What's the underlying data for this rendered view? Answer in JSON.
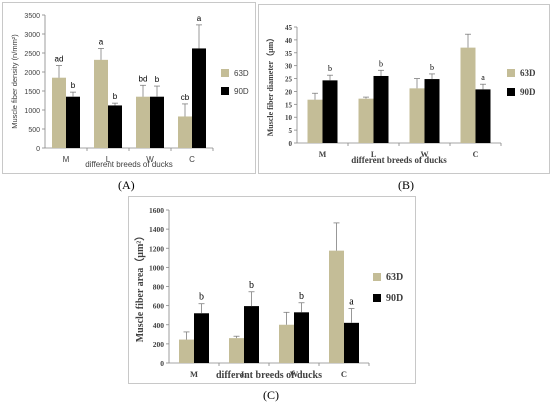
{
  "chart_data": [
    {
      "panel": "A",
      "type": "bar",
      "ylabel": "Muscle fiber density (n/mm²)",
      "xlabel": "different breeds of ducks",
      "ylim": [
        0,
        3500
      ],
      "yticks": [
        "0",
        "500",
        "1000",
        "1500",
        "2000",
        "2500",
        "3000",
        "3500"
      ],
      "categories": [
        "M",
        "L",
        "W",
        "C"
      ],
      "legend_position": "right",
      "series": [
        {
          "name": "63D",
          "color": "#c4bd97",
          "values": [
            1850,
            2320,
            1350,
            830
          ],
          "errors": [
            320,
            300,
            300,
            330
          ],
          "letters": [
            "ad",
            "a",
            "bd",
            "cb"
          ]
        },
        {
          "name": "90D",
          "color": "#000000",
          "values": [
            1350,
            1120,
            1350,
            2620
          ],
          "errors": [
            120,
            60,
            280,
            620
          ],
          "letters": [
            "b",
            "b",
            "b",
            "a"
          ]
        }
      ]
    },
    {
      "panel": "B",
      "type": "bar",
      "ylabel": "Muscle fiber diameter（μm）",
      "xlabel": "different breeds of  ducks",
      "ylim": [
        0,
        45
      ],
      "yticks": [
        "0",
        "5",
        "10",
        "15",
        "20",
        "25",
        "30",
        "35",
        "40",
        "45"
      ],
      "categories": [
        "M",
        "L",
        "W",
        "C"
      ],
      "legend_position": "right",
      "series": [
        {
          "name": "63D",
          "color": "#c4bd97",
          "values": [
            16.8,
            17.2,
            21.2,
            37.0
          ],
          "errors": [
            2.5,
            0.6,
            3.8,
            5.2
          ],
          "letters": [
            "",
            "",
            "",
            ""
          ]
        },
        {
          "name": "90D",
          "color": "#000000",
          "values": [
            24.3,
            26.0,
            24.8,
            20.8
          ],
          "errors": [
            2.0,
            2.2,
            2.0,
            2.0
          ],
          "letters": [
            "b",
            "b",
            "b",
            "a"
          ]
        }
      ]
    },
    {
      "panel": "C",
      "type": "bar",
      "ylabel": "Muscle fiber area（μm²）",
      "xlabel": "different breeds of  ducks",
      "ylim": [
        0,
        1600
      ],
      "yticks": [
        "0",
        "200",
        "400",
        "600",
        "800",
        "1000",
        "1200",
        "1400",
        "1600"
      ],
      "categories": [
        "M",
        "L",
        "W",
        "C"
      ],
      "legend_position": "right",
      "series": [
        {
          "name": "63D",
          "color": "#c4bd97",
          "values": [
            245,
            260,
            400,
            1175
          ],
          "errors": [
            80,
            20,
            130,
            290
          ],
          "letters": [
            "",
            "",
            "",
            ""
          ]
        },
        {
          "name": "90D",
          "color": "#000000",
          "values": [
            520,
            595,
            530,
            420
          ],
          "errors": [
            100,
            150,
            100,
            150
          ],
          "letters": [
            "b",
            "b",
            "b",
            "a"
          ]
        }
      ]
    }
  ],
  "panel_labels": [
    "(A)",
    "(B)",
    "(C)"
  ]
}
